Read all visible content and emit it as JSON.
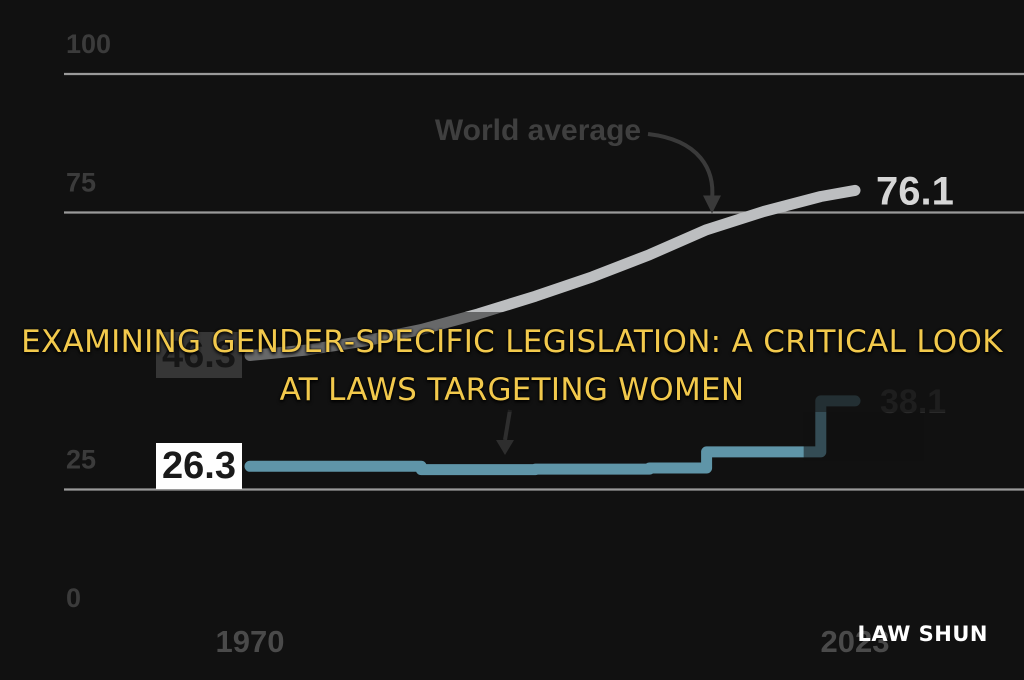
{
  "chart_data": {
    "type": "line",
    "x": [
      1970,
      1975,
      1980,
      1985,
      1990,
      1995,
      2000,
      2005,
      2010,
      2015,
      2020,
      2023
    ],
    "x_tick_labels": [
      "1970",
      "2023"
    ],
    "y_ticks": [
      "0",
      "25",
      "75",
      "100"
    ],
    "ylim": [
      0,
      100
    ],
    "grid": true,
    "series": [
      {
        "name": "World average",
        "color": "#bcbec0",
        "values": [
          46.3,
          47.3,
          48.9,
          51.0,
          53.8,
          57.0,
          60.5,
          64.5,
          69.0,
          72.3,
          75.0,
          76.1
        ],
        "start_label": "46.3",
        "end_label": "76.1"
      },
      {
        "name": "",
        "color": "#5f95a8",
        "values": [
          26.3,
          26.3,
          26.3,
          25.7,
          25.7,
          25.8,
          25.8,
          26.0,
          28.9,
          28.9,
          38.1,
          38.1
        ],
        "start_label": "26.3",
        "end_label": "38.1"
      }
    ]
  },
  "overlay": {
    "title": "EXAMINING GENDER-SPECIFIC LEGISLATION: A CRITICAL LOOK AT LAWS TARGETING WOMEN",
    "brand": "LAW SHUN"
  }
}
